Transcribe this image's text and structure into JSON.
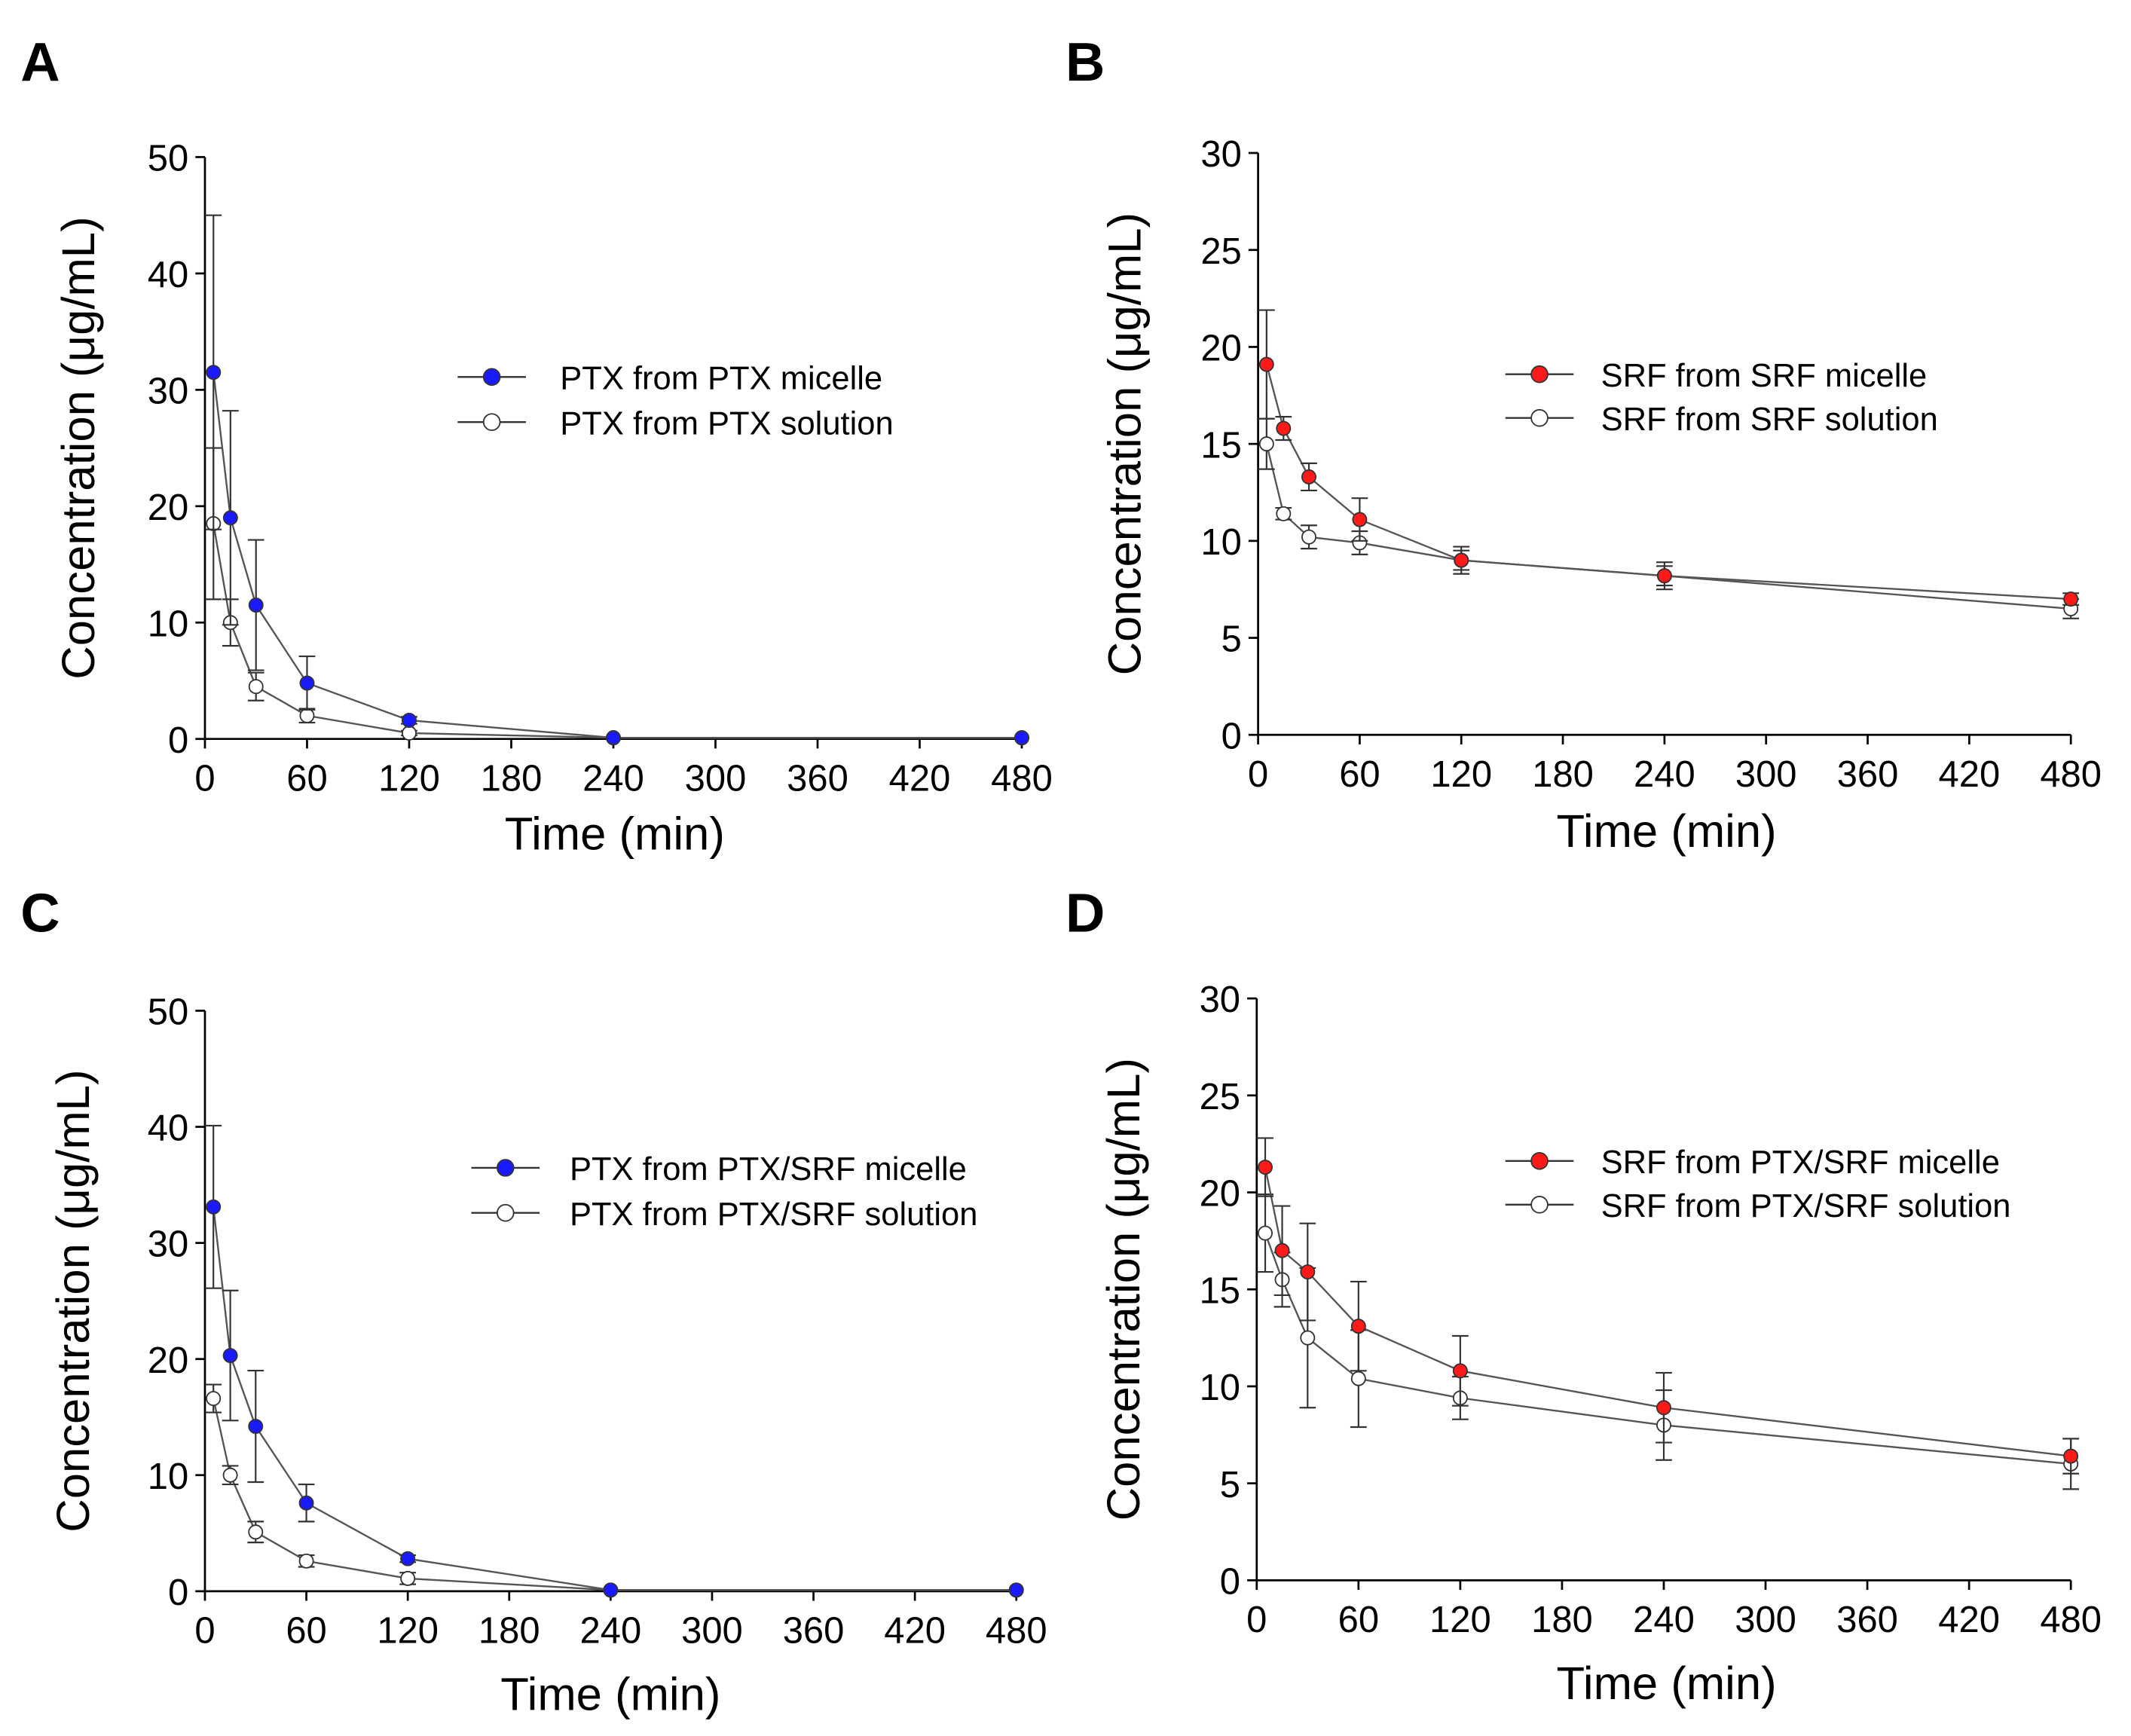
{
  "chart_data": [
    {
      "panel": "A",
      "type": "line",
      "xlabel": "Time (min)",
      "ylabel": "Concentration (μg/mL)",
      "xlim": [
        0,
        480
      ],
      "ylim": [
        0,
        50
      ],
      "xticks": [
        0,
        60,
        120,
        180,
        240,
        300,
        360,
        420,
        480
      ],
      "yticks": [
        0,
        10,
        20,
        30,
        40,
        50
      ],
      "legend_placement": "center-right",
      "series": [
        {
          "name": "PTX from PTX micelle",
          "marker": "filled",
          "color": "#1a1aff",
          "x": [
            5,
            15,
            30,
            60,
            120,
            240,
            480
          ],
          "y": [
            31.5,
            19.0,
            11.5,
            4.8,
            1.6,
            0.1,
            0.1
          ],
          "err": [
            13.5,
            9.2,
            5.6,
            2.3,
            0.3,
            0,
            0
          ]
        },
        {
          "name": "PTX from PTX solution",
          "marker": "open",
          "color": "#ffffff",
          "x": [
            5,
            15,
            30,
            60,
            120,
            240,
            480
          ],
          "y": [
            18.5,
            10.0,
            4.5,
            2.0,
            0.5,
            0.1,
            0.1
          ],
          "err": [
            6.5,
            2.0,
            1.2,
            0.6,
            0.2,
            0,
            0
          ]
        }
      ]
    },
    {
      "panel": "B",
      "type": "line",
      "xlabel": "Time (min)",
      "ylabel": "Concentration (μg/mL)",
      "xlim": [
        0,
        480
      ],
      "ylim": [
        0,
        30
      ],
      "xticks": [
        0,
        60,
        120,
        180,
        240,
        300,
        360,
        420,
        480
      ],
      "yticks": [
        0,
        5,
        10,
        15,
        20,
        25,
        30
      ],
      "legend_placement": "top-right",
      "series": [
        {
          "name": "SRF from SRF micelle",
          "marker": "filled",
          "color": "#ff1a1a",
          "x": [
            5,
            15,
            30,
            60,
            120,
            240,
            480
          ],
          "y": [
            19.1,
            15.8,
            13.3,
            11.1,
            9.0,
            8.2,
            7.0
          ],
          "err": [
            2.8,
            0.6,
            0.7,
            1.1,
            0.7,
            0.7,
            0.3
          ]
        },
        {
          "name": "SRF from SRF solution",
          "marker": "open",
          "color": "#ffffff",
          "x": [
            5,
            15,
            30,
            60,
            120,
            240,
            480
          ],
          "y": [
            15.0,
            11.4,
            10.2,
            9.9,
            9.0,
            8.2,
            6.5
          ],
          "err": [
            1.3,
            0.3,
            0.6,
            0.6,
            0.5,
            0.5,
            0.5
          ]
        }
      ]
    },
    {
      "panel": "C",
      "type": "line",
      "xlabel": "Time (min)",
      "ylabel": "Concentration (μg/mL)",
      "xlim": [
        0,
        480
      ],
      "ylim": [
        0,
        50
      ],
      "xticks": [
        0,
        60,
        120,
        180,
        240,
        300,
        360,
        420,
        480
      ],
      "yticks": [
        0,
        10,
        20,
        30,
        40,
        50
      ],
      "legend_placement": "center-right",
      "series": [
        {
          "name": "PTX from PTX/SRF micelle",
          "marker": "filled",
          "color": "#1a1aff",
          "x": [
            5,
            15,
            30,
            60,
            120,
            240,
            480
          ],
          "y": [
            33.1,
            20.3,
            14.2,
            7.6,
            2.8,
            0.1,
            0.1
          ],
          "err": [
            7.0,
            5.6,
            4.8,
            1.6,
            0.3,
            0,
            0
          ]
        },
        {
          "name": "PTX from PTX/SRF solution",
          "marker": "open",
          "color": "#ffffff",
          "x": [
            5,
            15,
            30,
            60,
            120,
            240,
            480
          ],
          "y": [
            16.6,
            10.0,
            5.1,
            2.6,
            1.1,
            0.1,
            0.1
          ],
          "err": [
            1.2,
            0.8,
            0.9,
            0.5,
            0.5,
            0,
            0
          ]
        }
      ]
    },
    {
      "panel": "D",
      "type": "line",
      "xlabel": "Time (min)",
      "ylabel": "Concentration (μg/mL)",
      "xlim": [
        0,
        480
      ],
      "ylim": [
        0,
        30
      ],
      "xticks": [
        0,
        60,
        120,
        180,
        240,
        300,
        360,
        420,
        480
      ],
      "yticks": [
        0,
        5,
        10,
        15,
        20,
        25,
        30
      ],
      "legend_placement": "top-right",
      "series": [
        {
          "name": "SRF from PTX/SRF micelle",
          "marker": "filled",
          "color": "#ff1a1a",
          "x": [
            5,
            15,
            30,
            60,
            120,
            240,
            480
          ],
          "y": [
            21.3,
            17.0,
            15.9,
            13.1,
            10.8,
            8.9,
            6.4
          ],
          "err": [
            1.5,
            2.3,
            2.5,
            2.3,
            1.8,
            1.8,
            0.9
          ]
        },
        {
          "name": "SRF from PTX/SRF solution",
          "marker": "open",
          "color": "#ffffff",
          "x": [
            5,
            15,
            30,
            60,
            120,
            240,
            480
          ],
          "y": [
            17.9,
            15.5,
            12.5,
            10.4,
            9.4,
            8.0,
            6.0
          ],
          "err": [
            2.0,
            1.4,
            3.6,
            2.5,
            1.1,
            1.8,
            1.3
          ]
        }
      ]
    }
  ]
}
